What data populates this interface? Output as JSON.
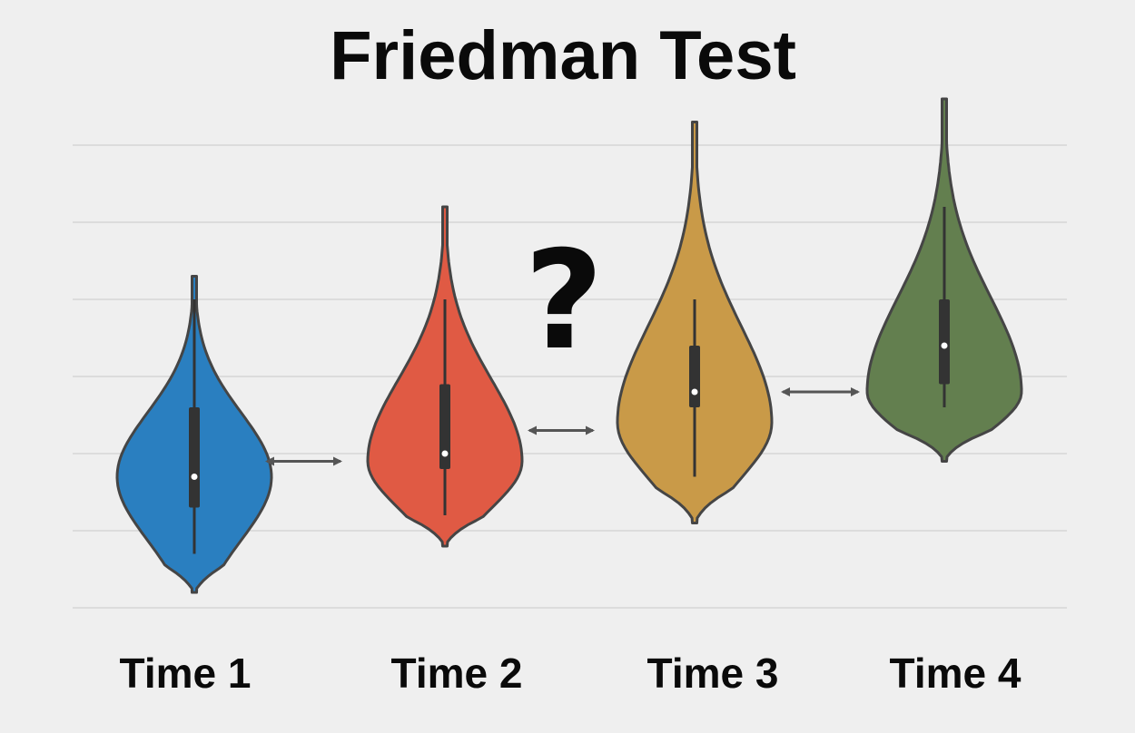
{
  "chart_data": {
    "type": "violin",
    "title": "Friedman Test",
    "xlabel": "",
    "ylabel": "",
    "grid": true,
    "categories": [
      "Time 1",
      "Time 2",
      "Time 3",
      "Time 4"
    ],
    "annotation": "?",
    "colors": [
      "#2a7fc0",
      "#e05a44",
      "#c99a48",
      "#637f4f"
    ],
    "violins": [
      {
        "min": 0.2,
        "q1": 1.3,
        "median": 1.7,
        "q3": 2.6,
        "max": 4.3,
        "whisker_low": 0.7,
        "whisker_high": 4.0,
        "mode": 1.7
      },
      {
        "min": 0.8,
        "q1": 1.8,
        "median": 2.0,
        "q3": 2.9,
        "max": 5.2,
        "whisker_low": 1.2,
        "whisker_high": 4.0,
        "mode": 1.9
      },
      {
        "min": 1.1,
        "q1": 2.6,
        "median": 2.8,
        "q3": 3.4,
        "max": 6.3,
        "whisker_low": 1.7,
        "whisker_high": 4.0,
        "mode": 2.4
      },
      {
        "min": 1.9,
        "q1": 2.9,
        "median": 3.4,
        "q3": 4.0,
        "max": 6.6,
        "whisker_low": 2.6,
        "whisker_high": 5.2,
        "mode": 2.8
      }
    ],
    "connections": [
      [
        0,
        1
      ],
      [
        1,
        2
      ],
      [
        2,
        3
      ]
    ],
    "ylim": [
      0,
      7
    ]
  }
}
